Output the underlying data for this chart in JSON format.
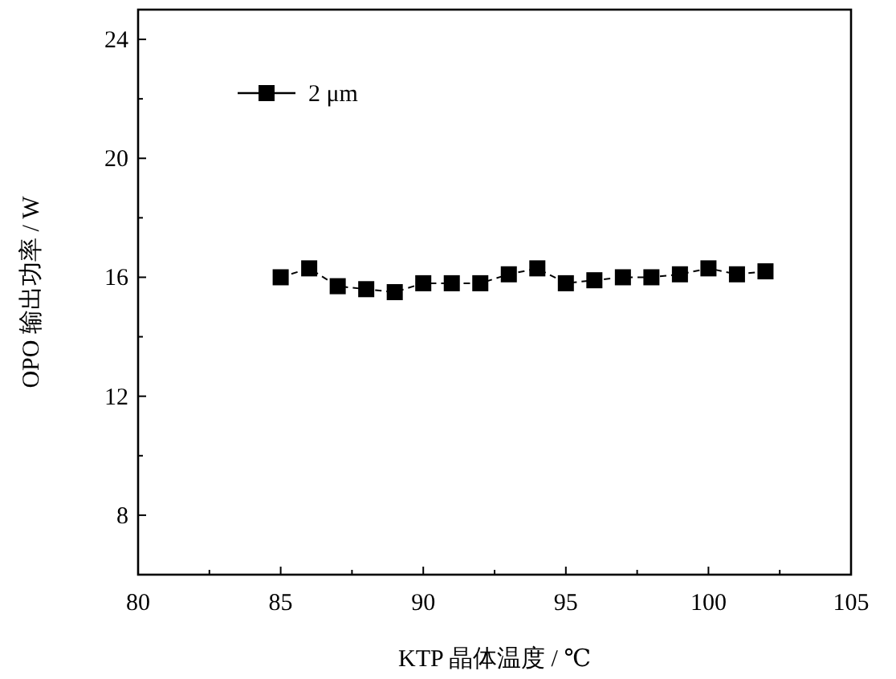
{
  "chart_data": {
    "type": "line",
    "xlabel": "KTP 晶体温度 / ℃",
    "ylabel": "OPO 输出功率 / W",
    "x": [
      85,
      86,
      87,
      88,
      89,
      90,
      91,
      92,
      93,
      94,
      95,
      96,
      97,
      98,
      99,
      100,
      101,
      102
    ],
    "series": [
      {
        "name": "2 μm",
        "color": "#000000",
        "values": [
          16.0,
          16.3,
          15.7,
          15.6,
          15.5,
          15.8,
          15.8,
          15.8,
          16.1,
          16.3,
          15.8,
          15.9,
          16.0,
          16.0,
          16.1,
          16.3,
          16.1,
          16.2
        ]
      }
    ],
    "xlim": [
      80,
      105
    ],
    "xticks": [
      80,
      {
        "value": 82.5,
        "label": null
      },
      85,
      {
        "value": 87.5,
        "label": null
      },
      90,
      {
        "value": 92.5,
        "label": null
      },
      95,
      {
        "value": 97.5,
        "label": null
      },
      100,
      {
        "value": 102.5,
        "label": null
      },
      105
    ],
    "ylim": [
      6,
      25
    ],
    "yticks": [
      8,
      {
        "value": 10,
        "label": null
      },
      12,
      {
        "value": 14,
        "label": null
      },
      16,
      {
        "value": 18,
        "label": null
      },
      20,
      {
        "value": 22,
        "label": null
      },
      24
    ],
    "marker": "square",
    "line_style": "dashed",
    "legend": "top left",
    "grid": false
  }
}
